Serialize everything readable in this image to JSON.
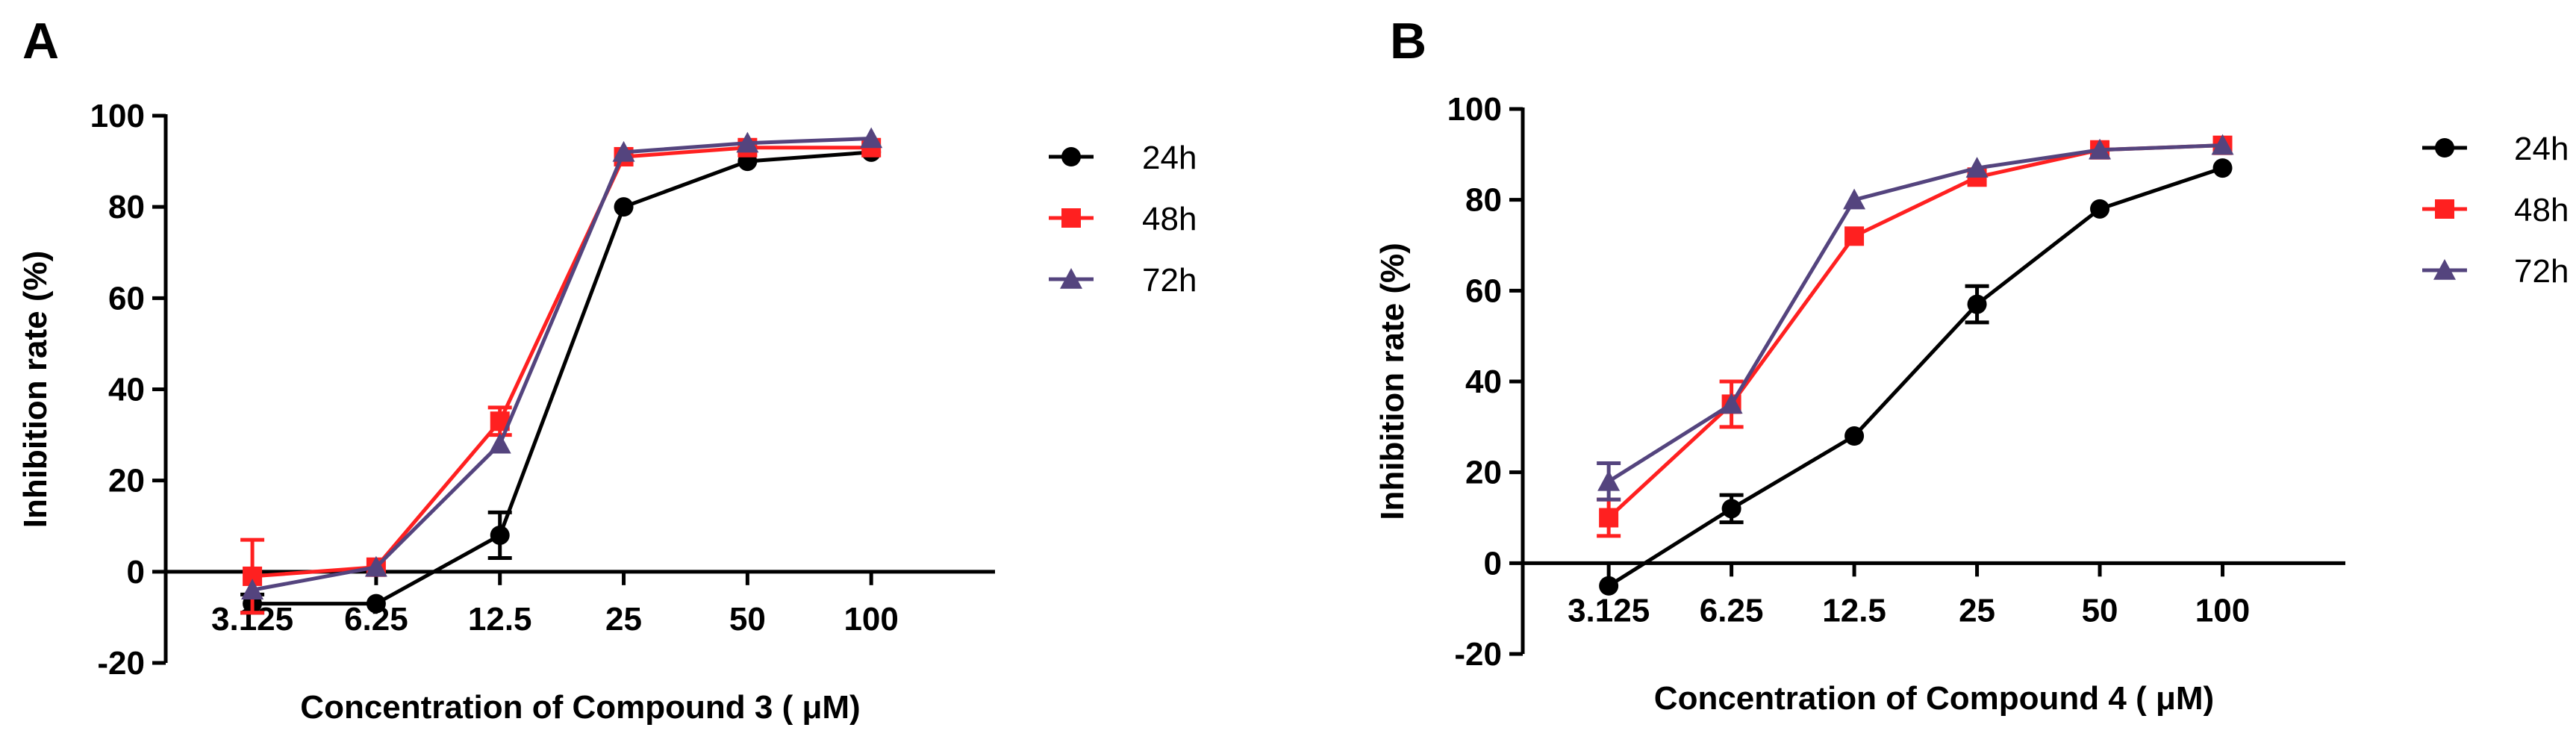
{
  "chart_data": [
    {
      "panel": "A",
      "type": "line",
      "title": "",
      "xlabel": "Concentration of Compound 3 ( μM)",
      "ylabel": "Inhibition rate (%)",
      "ylim": [
        -20,
        100
      ],
      "yticks": [
        "-20",
        "0",
        "20",
        "40",
        "60",
        "80",
        "100"
      ],
      "categories": [
        "3.125",
        "6.25",
        "12.5",
        "25",
        "50",
        "100"
      ],
      "legend_position": "right",
      "series": [
        {
          "name": "24h",
          "color": "#000000",
          "marker": "circle",
          "values": [
            -7,
            -7,
            8,
            80,
            90,
            92
          ],
          "errors": [
            2,
            1,
            5,
            1,
            1,
            1
          ]
        },
        {
          "name": "48h",
          "color": "#ff2020",
          "marker": "square",
          "values": [
            -1,
            1,
            33,
            91,
            93,
            93
          ],
          "errors": [
            8,
            1,
            3,
            1,
            1,
            1
          ]
        },
        {
          "name": "72h",
          "color": "#54447e",
          "marker": "triangle",
          "values": [
            -4,
            1,
            28,
            92,
            94,
            95
          ],
          "errors": [
            1,
            1,
            1,
            1,
            1,
            1
          ]
        }
      ]
    },
    {
      "panel": "B",
      "type": "line",
      "title": "",
      "xlabel": "Concentration of Compound 4 ( μM)",
      "ylabel": "Inhibition rate (%)",
      "ylim": [
        -20,
        100
      ],
      "yticks": [
        "-20",
        "0",
        "20",
        "40",
        "60",
        "80",
        "100"
      ],
      "categories": [
        "3.125",
        "6.25",
        "12.5",
        "25",
        "50",
        "100"
      ],
      "legend_position": "right",
      "series": [
        {
          "name": "24h",
          "color": "#000000",
          "marker": "circle",
          "values": [
            -5,
            12,
            28,
            57,
            78,
            87
          ],
          "errors": [
            1,
            3,
            1,
            4,
            1,
            1
          ]
        },
        {
          "name": "48h",
          "color": "#ff2020",
          "marker": "square",
          "values": [
            10,
            35,
            72,
            85,
            91,
            92
          ],
          "errors": [
            4,
            5,
            1,
            1,
            1,
            1
          ]
        },
        {
          "name": "72h",
          "color": "#54447e",
          "marker": "triangle",
          "values": [
            18,
            35,
            80,
            87,
            91,
            92
          ],
          "errors": [
            4,
            1,
            1,
            1,
            1,
            1
          ]
        }
      ]
    }
  ]
}
